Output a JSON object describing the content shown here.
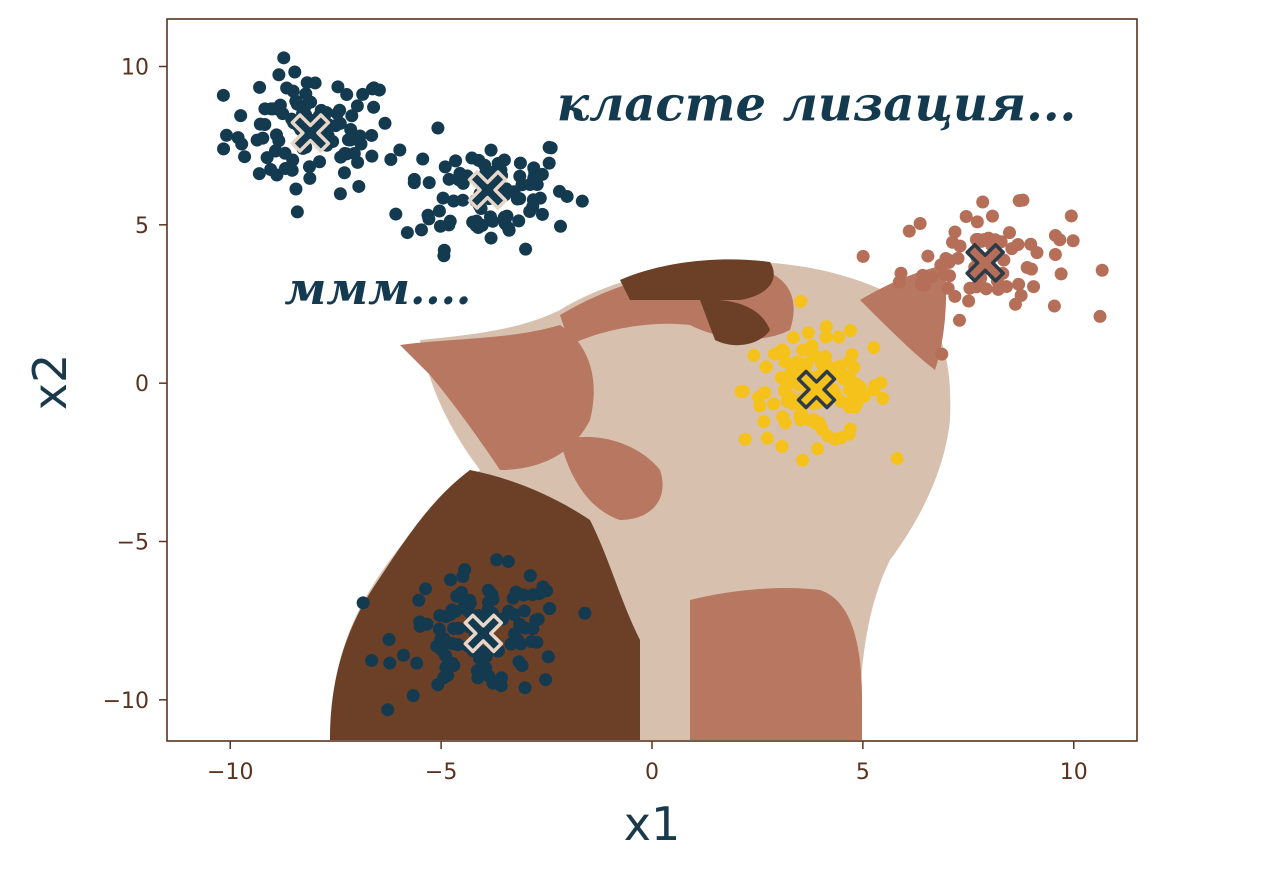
{
  "chart_data": {
    "type": "scatter",
    "xlabel": "x1",
    "ylabel": "x2",
    "xlim": [
      -11.5,
      11.5
    ],
    "ylim": [
      -11.3,
      11.5
    ],
    "x_ticks": [
      -10,
      -5,
      0,
      5,
      10
    ],
    "y_ticks": [
      10,
      5,
      0,
      -5,
      -10
    ],
    "x_tick_labels": [
      "−10",
      "−5",
      "0",
      "5",
      "10"
    ],
    "y_tick_labels": [
      "10",
      "5",
      "0",
      "−5",
      "−10"
    ],
    "grid": false,
    "legend": "none",
    "annotations": [
      {
        "text": "класте лизация...",
        "x": 3.9,
        "y": 8.3,
        "size": 48
      },
      {
        "text": "ммм....",
        "x": -6.5,
        "y": 2.5,
        "size": 44
      }
    ],
    "clusters": [
      {
        "center": [
          -8.1,
          7.9
        ],
        "color": "#143a50",
        "spread": [
          1.0,
          0.95
        ],
        "n": 95
      },
      {
        "center": [
          -3.9,
          6.1
        ],
        "color": "#143a50",
        "spread": [
          1.0,
          0.9
        ],
        "n": 95
      },
      {
        "center": [
          7.9,
          3.8
        ],
        "color": "#b56f59",
        "spread": [
          1.0,
          0.85
        ],
        "n": 80
      },
      {
        "center": [
          3.9,
          -0.2
        ],
        "color": "#f5c21b",
        "spread": [
          0.85,
          0.85
        ],
        "n": 120
      },
      {
        "center": [
          -4.0,
          -7.9
        ],
        "color": "#143a50",
        "spread": [
          1.0,
          0.95
        ],
        "n": 110
      }
    ],
    "background_colors": {
      "dark": "#6b4026",
      "mid": "#b77760",
      "light": "#d8c0ae",
      "frame": "#5a3320"
    }
  }
}
